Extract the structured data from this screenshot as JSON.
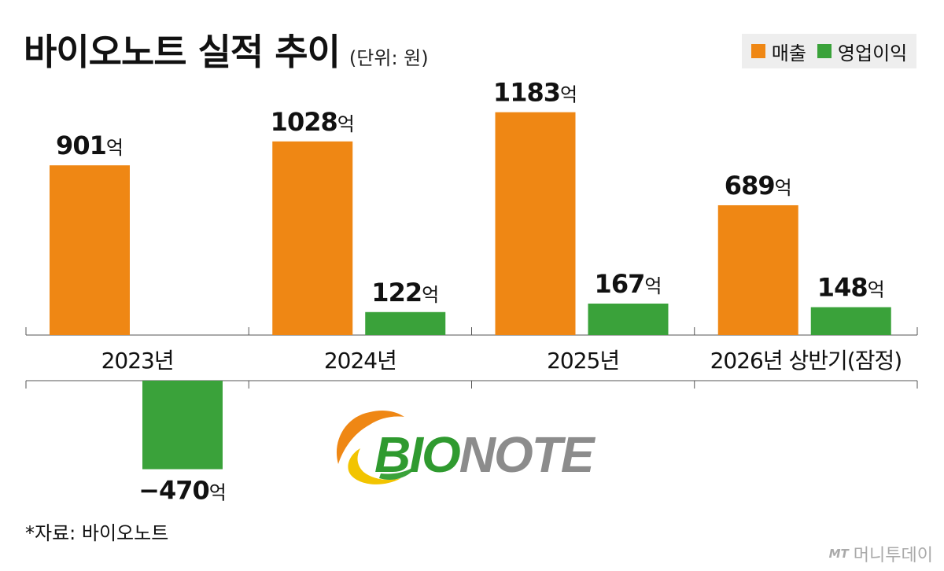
{
  "header": {
    "title": "바이오노트 실적 추이",
    "unit": "(단위: 원)"
  },
  "legend": {
    "items": [
      {
        "label": "매출",
        "color": "#ef8714"
      },
      {
        "label": "영업이익",
        "color": "#3aa23a"
      }
    ]
  },
  "chart_data": {
    "type": "bar",
    "categories": [
      "2023년",
      "2024년",
      "2025년",
      "2026년 상반기(잠정)"
    ],
    "series": [
      {
        "name": "매출",
        "color": "#ef8714",
        "values": [
          901,
          1028,
          1183,
          689
        ],
        "labels": [
          "901",
          "1028",
          "1183",
          "689"
        ]
      },
      {
        "name": "영업이익",
        "color": "#3aa23a",
        "values": [
          -470,
          122,
          167,
          148
        ],
        "labels": [
          "−470",
          "122",
          "167",
          "148"
        ]
      }
    ],
    "value_suffix": "억",
    "title": "바이오노트 실적 추이",
    "xlabel": "",
    "ylabel": "",
    "grid": false
  },
  "logo": {
    "text": "BIONOTE"
  },
  "footer": {
    "source": "*자료: 바이오노트",
    "watermark_brand": "MT",
    "watermark_text": "머니투데이"
  }
}
